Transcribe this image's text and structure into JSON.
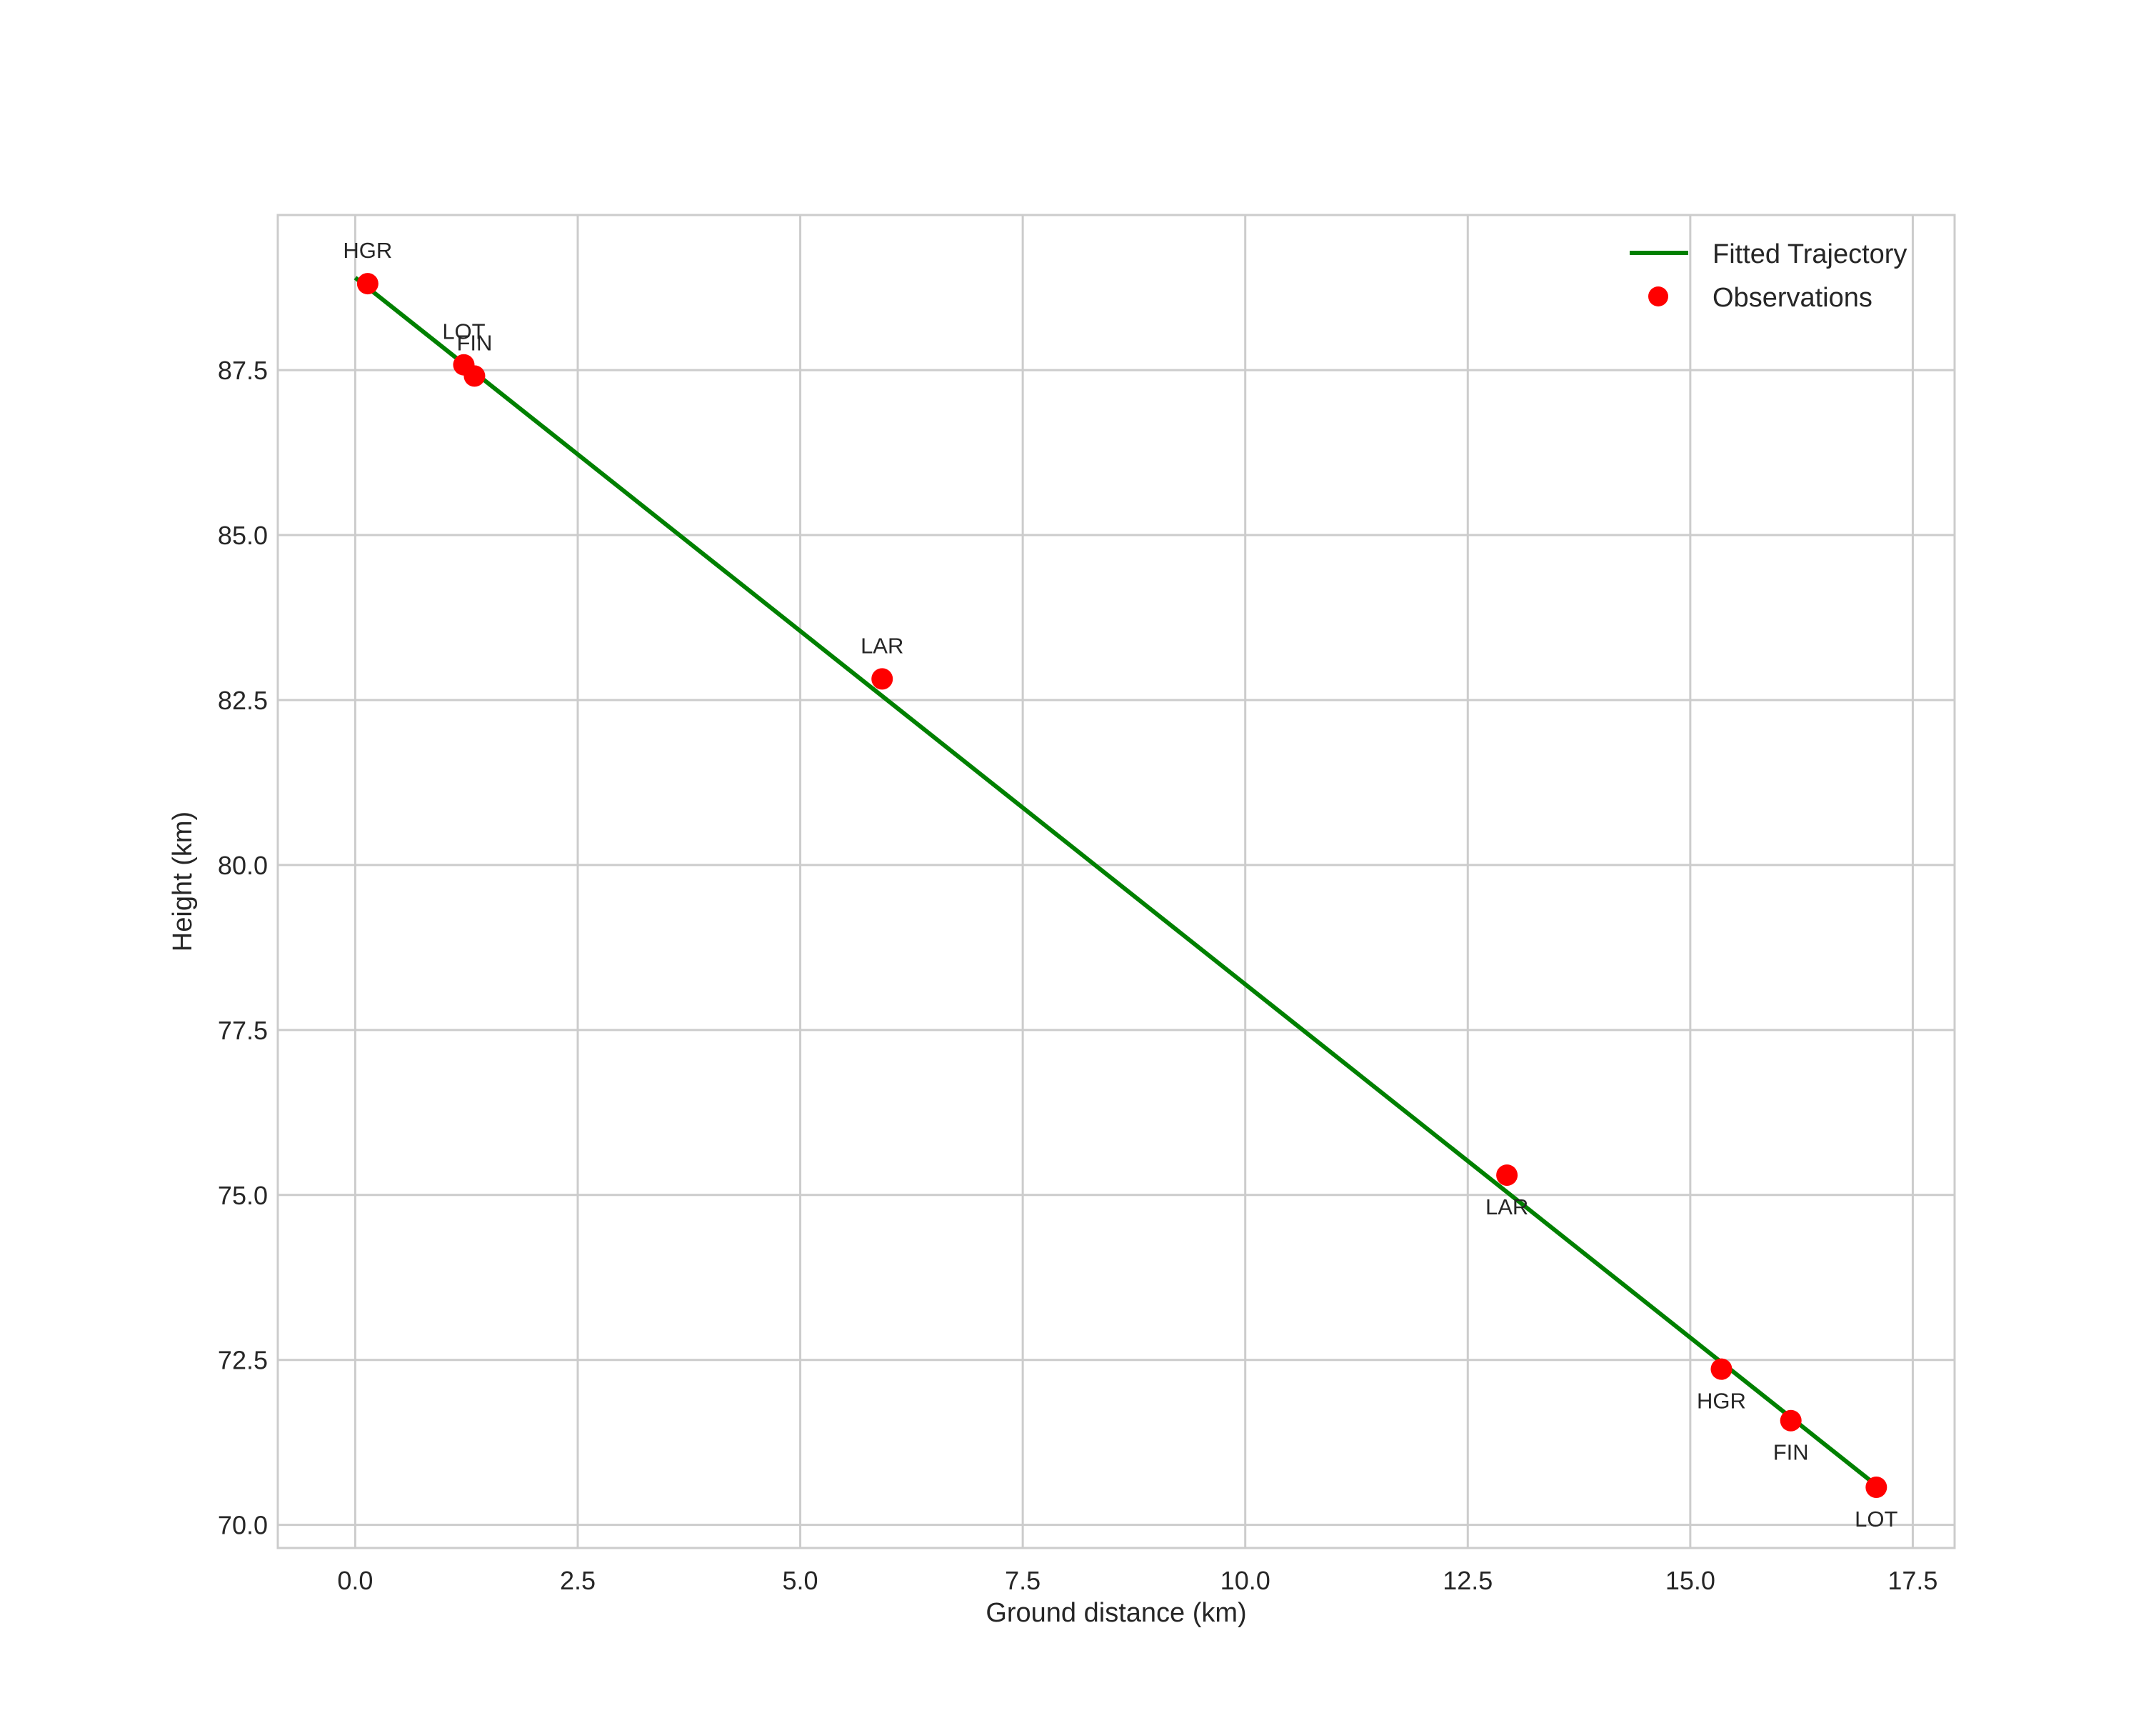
{
  "chart_data": {
    "type": "line",
    "title": "",
    "xlabel": "Ground distance (km)",
    "ylabel": "Height (km)",
    "xlim": [
      -0.87,
      17.97
    ],
    "ylim": [
      69.65,
      89.85
    ],
    "xticks": [
      0.0,
      2.5,
      5.0,
      7.5,
      10.0,
      12.5,
      15.0,
      17.5
    ],
    "xtick_labels": [
      "0.0",
      "2.5",
      "5.0",
      "7.5",
      "10.0",
      "12.5",
      "15.0",
      "17.5"
    ],
    "yticks": [
      70.0,
      72.5,
      75.0,
      77.5,
      80.0,
      82.5,
      85.0,
      87.5
    ],
    "ytick_labels": [
      "70.0",
      "72.5",
      "75.0",
      "77.5",
      "80.0",
      "82.5",
      "85.0",
      "87.5"
    ],
    "grid": true,
    "legend_position": "upper right",
    "series": [
      {
        "name": "Fitted Trajectory",
        "type": "line",
        "color": "#008000",
        "x": [
          0.0,
          17.09
        ],
        "y": [
          88.9,
          70.6
        ]
      },
      {
        "name": "Observations",
        "type": "scatter",
        "color": "#ff0000",
        "points": [
          {
            "label": "HGR",
            "x": 0.14,
            "y": 88.81,
            "label_pos": "above"
          },
          {
            "label": "LOT",
            "x": 1.22,
            "y": 87.58,
            "label_pos": "above"
          },
          {
            "label": "FIN",
            "x": 1.34,
            "y": 87.41,
            "label_pos": "above"
          },
          {
            "label": "LAR",
            "x": 5.92,
            "y": 82.82,
            "label_pos": "above"
          },
          {
            "label": "LAR",
            "x": 12.94,
            "y": 75.3,
            "label_pos": "below"
          },
          {
            "label": "HGR",
            "x": 15.35,
            "y": 72.36,
            "label_pos": "below"
          },
          {
            "label": "FIN",
            "x": 16.13,
            "y": 71.58,
            "label_pos": "below"
          },
          {
            "label": "LOT",
            "x": 17.09,
            "y": 70.57,
            "label_pos": "below"
          }
        ]
      }
    ]
  },
  "legend": {
    "items": [
      {
        "label": "Fitted Trajectory",
        "kind": "line",
        "color": "#008000"
      },
      {
        "label": "Observations",
        "kind": "marker",
        "color": "#ff0000"
      }
    ]
  }
}
